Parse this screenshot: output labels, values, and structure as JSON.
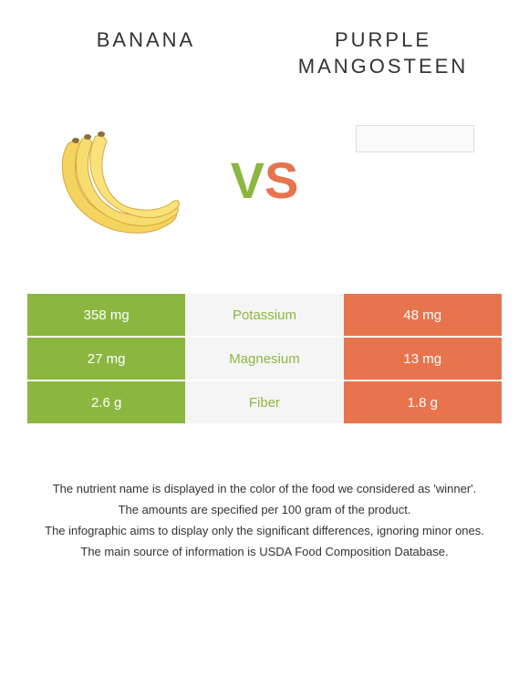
{
  "header": {
    "left_title": "Banana",
    "right_title": "Purple Mangosteen"
  },
  "vs": {
    "v": "V",
    "s": "S"
  },
  "colors": {
    "left_bar": "#8bb741",
    "right_bar": "#e8744d",
    "mid_bg": "#f5f5f5",
    "mid_text_winner_left": "#8bb741",
    "mid_text_winner_right": "#e8744d"
  },
  "rows": [
    {
      "nutrient": "Potassium",
      "left_value": "358 mg",
      "right_value": "48 mg",
      "winner": "left"
    },
    {
      "nutrient": "Magnesium",
      "left_value": "27 mg",
      "right_value": "13 mg",
      "winner": "left"
    },
    {
      "nutrient": "Fiber",
      "left_value": "2.6 g",
      "right_value": "1.8 g",
      "winner": "left"
    }
  ],
  "footer": {
    "line1": "The nutrient name is displayed in the color of the food we considered as 'winner'.",
    "line2": "The amounts are specified per 100 gram of the product.",
    "line3": "The infographic aims to display only the significant differences, ignoring minor ones.",
    "line4": "The main source of information is USDA Food Composition Database."
  }
}
